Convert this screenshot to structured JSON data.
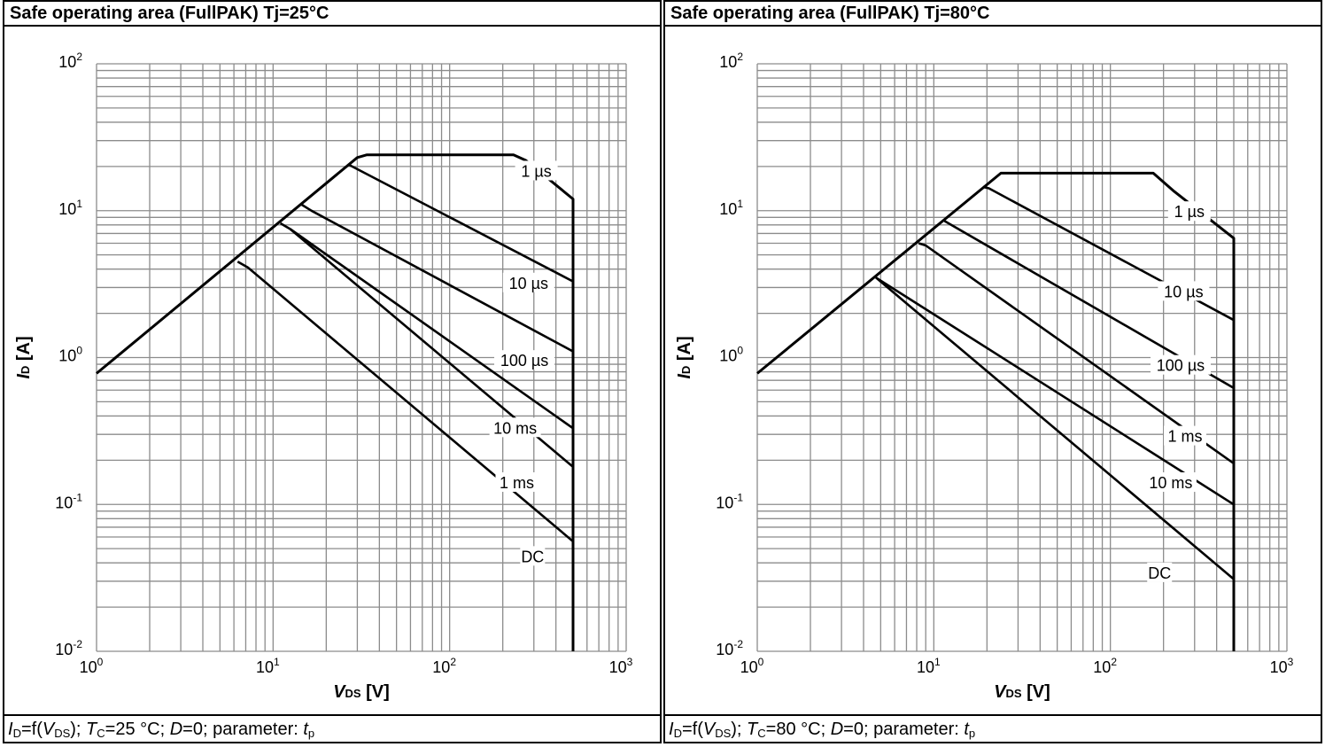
{
  "chart_data": [
    {
      "type": "line",
      "title": "Safe operating area (FullPAK) Tj=25°C",
      "xlabel_main": "V",
      "xlabel_sub": "DS",
      "xlabel_unit": " [V]",
      "ylabel_main": "I",
      "ylabel_sub": "D",
      "ylabel_unit": " [A]",
      "xscale": "log",
      "yscale": "log",
      "xlim": [
        1,
        1000
      ],
      "ylim": [
        0.01,
        100
      ],
      "grid": true,
      "footer": {
        "p1": "I",
        "p2": "D",
        "p3": "=f(",
        "p4": "V",
        "p5": "DS",
        "p6": "); ",
        "p7": "T",
        "p8": "C",
        "p9": "=25 °C; ",
        "p10": "D",
        "p11": "=0; parameter: ",
        "p12": "t",
        "p13": "p"
      },
      "series": [
        {
          "name": "1 µs",
          "label_at": [
            310,
            18.5
          ],
          "points": [
            [
              1,
              0.78
            ],
            [
              30,
              23
            ],
            [
              34,
              24
            ],
            [
              230,
              24
            ],
            [
              270,
              22
            ],
            [
              500,
              12
            ],
            [
              500,
              0.01
            ]
          ]
        },
        {
          "name": "10 µs",
          "label_at": [
            280,
            3.2
          ],
          "points": [
            [
              27,
              20.5
            ],
            [
              500,
              3.3
            ]
          ]
        },
        {
          "name": "100 µs",
          "label_at": [
            265,
            0.95
          ],
          "points": [
            [
              14.5,
              11
            ],
            [
              16.5,
              10
            ],
            [
              500,
              1.1
            ]
          ]
        },
        {
          "name": "10 ms",
          "label_at": [
            235,
            0.33
          ],
          "points": [
            [
              11,
              8.2
            ],
            [
              12.5,
              7.5
            ],
            [
              500,
              0.33
            ]
          ]
        },
        {
          "name": "1 ms",
          "label_at": [
            240,
            0.14
          ],
          "points": [
            [
              12.5,
              7.5
            ],
            [
              500,
              0.18
            ]
          ]
        },
        {
          "name": "DC",
          "label_at": [
            295,
            0.044
          ],
          "points": [
            [
              6.3,
              4.5
            ],
            [
              7.2,
              4.1
            ],
            [
              500,
              0.056
            ]
          ]
        }
      ]
    },
    {
      "type": "line",
      "title": "Safe operating area (FullPAK) Tj=80°C",
      "xlabel_main": "V",
      "xlabel_sub": "DS",
      "xlabel_unit": " [V]",
      "ylabel_main": "I",
      "ylabel_sub": "D",
      "ylabel_unit": " [A]",
      "xscale": "log",
      "yscale": "log",
      "xlim": [
        1,
        1000
      ],
      "ylim": [
        0.01,
        100
      ],
      "grid": true,
      "footer": {
        "p1": "I",
        "p2": "D",
        "p3": "=f(",
        "p4": "V",
        "p5": "DS",
        "p6": "); ",
        "p7": "T",
        "p8": "C",
        "p9": "=80 °C; ",
        "p10": "D",
        "p11": "=0; parameter: ",
        "p12": "t",
        "p13": "p"
      },
      "series": [
        {
          "name": "1 µs",
          "label_at": [
            280,
            9.8
          ],
          "points": [
            [
              1,
              0.78
            ],
            [
              24,
              18
            ],
            [
              175,
              18
            ],
            [
              230,
              13.5
            ],
            [
              500,
              6.5
            ],
            [
              500,
              0.01
            ]
          ]
        },
        {
          "name": "10 µs",
          "label_at": [
            260,
            2.8
          ],
          "points": [
            [
              19,
              14.5
            ],
            [
              20.5,
              14.2
            ],
            [
              500,
              1.8
            ]
          ]
        },
        {
          "name": "100 µs",
          "label_at": [
            250,
            0.88
          ],
          "points": [
            [
              11.5,
              8.5
            ],
            [
              500,
              0.62
            ]
          ]
        },
        {
          "name": "1 ms",
          "label_at": [
            265,
            0.29
          ],
          "points": [
            [
              8.2,
              6
            ],
            [
              9,
              5.8
            ],
            [
              500,
              0.19
            ]
          ]
        },
        {
          "name": "10 ms",
          "label_at": [
            220,
            0.14
          ],
          "points": [
            [
              4.7,
              3.5
            ],
            [
              500,
              0.1
            ]
          ]
        },
        {
          "name": "DC",
          "label_at": [
            190,
            0.034
          ],
          "points": [
            [
              4.7,
              3.5
            ],
            [
              500,
              0.031
            ]
          ]
        }
      ]
    }
  ]
}
